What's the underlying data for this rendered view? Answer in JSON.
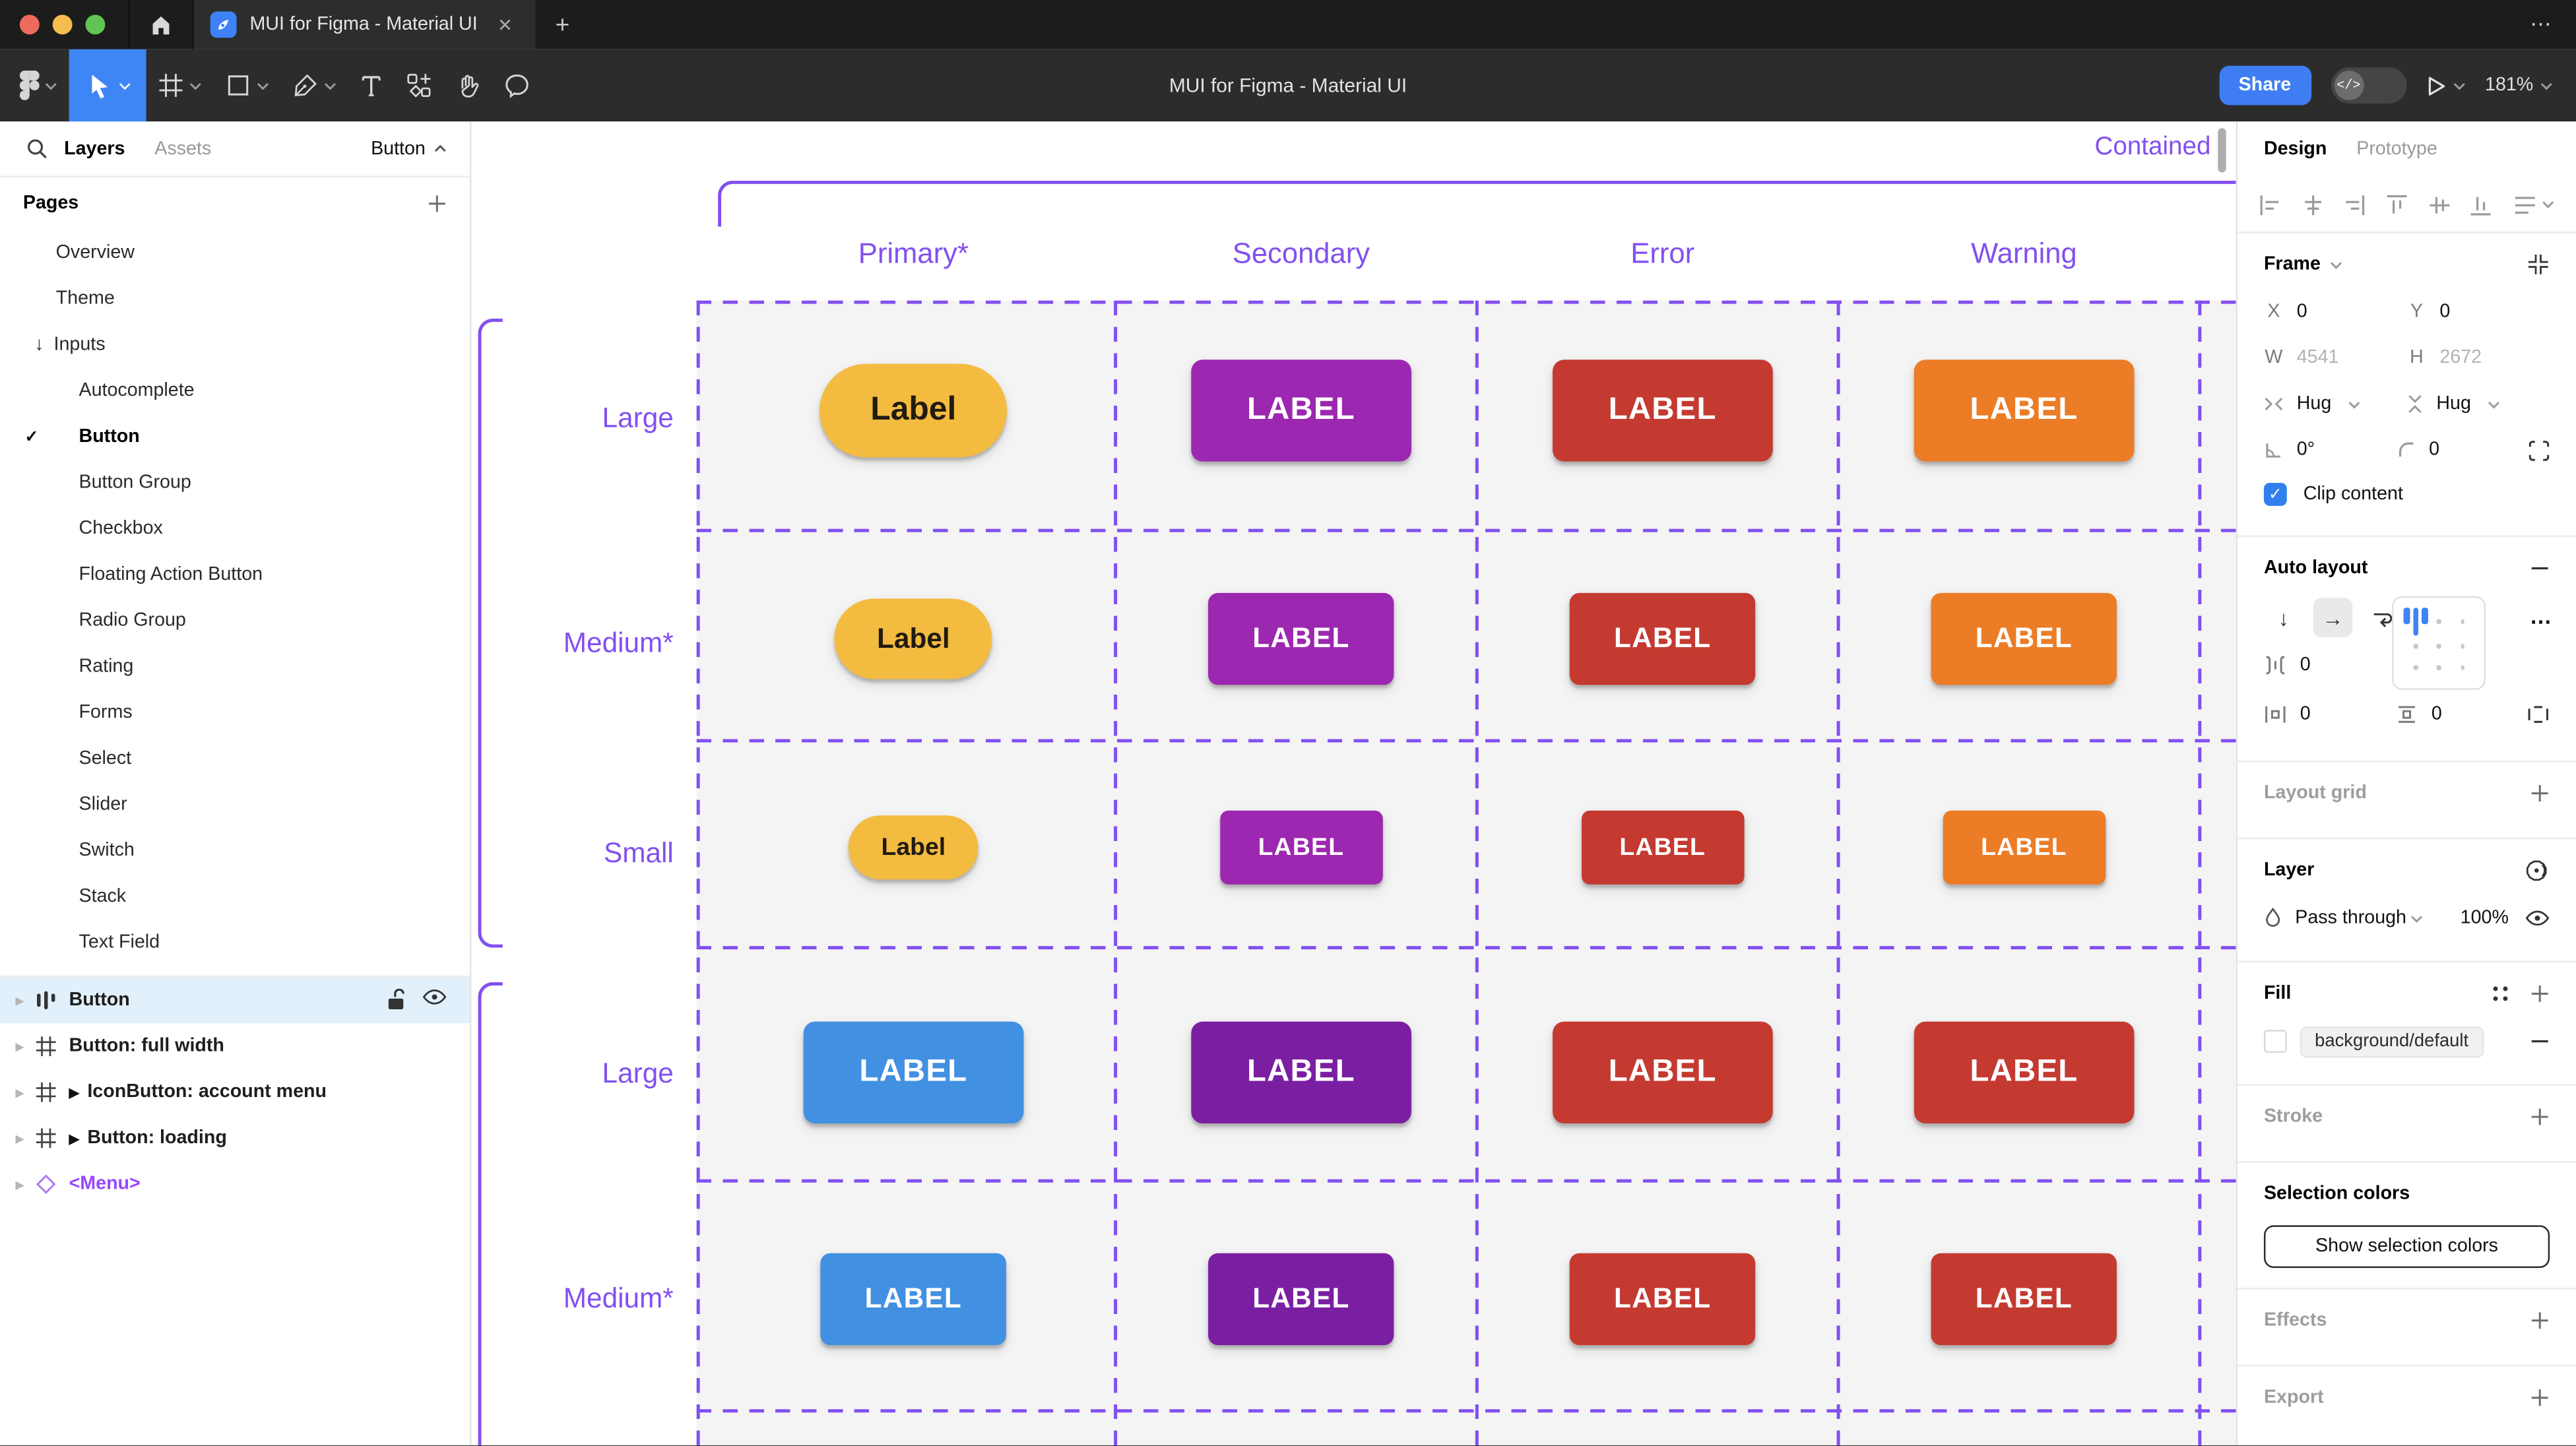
{
  "window": {
    "tab_title": "MUI for Figma - Material UI",
    "close_glyph": "✕",
    "new_tab_glyph": "+",
    "more_glyph": "⋯"
  },
  "toolbar": {
    "title": "MUI for Figma - Material UI",
    "share_label": "Share",
    "dev_toggle_label": "</>",
    "zoom_level": "181%"
  },
  "sidebar": {
    "tabs": {
      "layers": "Layers",
      "assets": "Assets"
    },
    "page_selector": "Button",
    "pages_header": "Pages",
    "pages": [
      {
        "label": "Overview",
        "indent": 1
      },
      {
        "label": "Theme",
        "indent": 1
      },
      {
        "label": "Inputs",
        "indent": 1,
        "arrow": "↓"
      },
      {
        "label": "Autocomplete",
        "indent": 2
      },
      {
        "label": "Button",
        "indent": 2,
        "checked": true,
        "bold": true
      },
      {
        "label": "Button Group",
        "indent": 2
      },
      {
        "label": "Checkbox",
        "indent": 2
      },
      {
        "label": "Floating Action Button",
        "indent": 2
      },
      {
        "label": "Radio Group",
        "indent": 2
      },
      {
        "label": "Rating",
        "indent": 2
      },
      {
        "label": "Forms",
        "indent": 2
      },
      {
        "label": "Select",
        "indent": 2
      },
      {
        "label": "Slider",
        "indent": 2
      },
      {
        "label": "Switch",
        "indent": 2
      },
      {
        "label": "Stack",
        "indent": 2
      },
      {
        "label": "Text Field",
        "indent": 2
      }
    ],
    "layers": [
      {
        "label": "Button",
        "icon": "autolayout",
        "selected": true
      },
      {
        "label": "Button: full width",
        "icon": "frame"
      },
      {
        "label": "IconButton: account menu",
        "icon": "frame",
        "instance": true
      },
      {
        "label": "Button: loading",
        "icon": "frame",
        "instance": true
      },
      {
        "label": "<Menu>",
        "icon": "component",
        "purple": true
      }
    ]
  },
  "canvas": {
    "section_label": "Contained",
    "accent_color": "#8250F0",
    "columns": [
      "Primary*",
      "Secondary",
      "Error",
      "Warning"
    ],
    "row_groups": [
      {
        "rows": [
          {
            "label": "Large",
            "size": "lg",
            "buttons": [
              {
                "text": "Label",
                "bg": "#F3BB40",
                "fg": "#211B10",
                "pill": true
              },
              {
                "text": "LABEL",
                "bg": "#9C27B0",
                "fg": "#FFFFFF"
              },
              {
                "text": "LABEL",
                "bg": "#C43A31",
                "fg": "#FFFFFF"
              },
              {
                "text": "LABEL",
                "bg": "#EC7C26",
                "fg": "#FFFFFF"
              }
            ]
          },
          {
            "label": "Medium*",
            "size": "md",
            "buttons": [
              {
                "text": "Label",
                "bg": "#F3BB40",
                "fg": "#211B10",
                "pill": true
              },
              {
                "text": "LABEL",
                "bg": "#9C27B0",
                "fg": "#FFFFFF"
              },
              {
                "text": "LABEL",
                "bg": "#C43A31",
                "fg": "#FFFFFF"
              },
              {
                "text": "LABEL",
                "bg": "#EC7C26",
                "fg": "#FFFFFF"
              }
            ]
          },
          {
            "label": "Small",
            "size": "sm",
            "buttons": [
              {
                "text": "Label",
                "bg": "#F3BB40",
                "fg": "#211B10",
                "pill": true
              },
              {
                "text": "LABEL",
                "bg": "#9C27B0",
                "fg": "#FFFFFF"
              },
              {
                "text": "LABEL",
                "bg": "#C43A31",
                "fg": "#FFFFFF"
              },
              {
                "text": "LABEL",
                "bg": "#EC7C26",
                "fg": "#FFFFFF"
              }
            ]
          }
        ]
      },
      {
        "rows": [
          {
            "label": "Large",
            "size": "lg",
            "buttons": [
              {
                "text": "LABEL",
                "bg": "#4190E2",
                "fg": "#FFFFFF"
              },
              {
                "text": "LABEL",
                "bg": "#7B1FA2",
                "fg": "#FFFFFF"
              },
              {
                "text": "LABEL",
                "bg": "#C43A31",
                "fg": "#FFFFFF"
              },
              {
                "text": "LABEL",
                "bg": "#C43A31",
                "fg": "#FFFFFF"
              }
            ]
          },
          {
            "label": "Medium*",
            "size": "md",
            "buttons": [
              {
                "text": "LABEL",
                "bg": "#4190E2",
                "fg": "#FFFFFF"
              },
              {
                "text": "LABEL",
                "bg": "#7B1FA2",
                "fg": "#FFFFFF"
              },
              {
                "text": "LABEL",
                "bg": "#C43A31",
                "fg": "#FFFFFF"
              },
              {
                "text": "LABEL",
                "bg": "#C43A31",
                "fg": "#FFFFFF"
              }
            ]
          }
        ]
      }
    ]
  },
  "panel": {
    "tabs": {
      "design": "Design",
      "prototype": "Prototype"
    },
    "frame": {
      "heading": "Frame",
      "x_label": "X",
      "x": "0",
      "y_label": "Y",
      "y": "0",
      "w_label": "W",
      "w": "4541",
      "h_label": "H",
      "h": "2672",
      "hug_h": "Hug",
      "hug_v": "Hug",
      "rotation": "0°",
      "radius": "0",
      "clip_label": "Clip content"
    },
    "auto_layout": {
      "heading": "Auto layout",
      "gap": "0",
      "padding_h": "0",
      "padding_v": "0",
      "more_glyph": "⋯"
    },
    "layout_grid": {
      "heading": "Layout grid"
    },
    "layer": {
      "heading": "Layer",
      "blend_mode": "Pass through",
      "opacity": "100%"
    },
    "fill": {
      "heading": "Fill",
      "token": "background/default"
    },
    "stroke": {
      "heading": "Stroke"
    },
    "selection_colors": {
      "heading": "Selection colors",
      "button_label": "Show selection colors"
    },
    "effects": {
      "heading": "Effects"
    },
    "export": {
      "heading": "Export"
    }
  }
}
